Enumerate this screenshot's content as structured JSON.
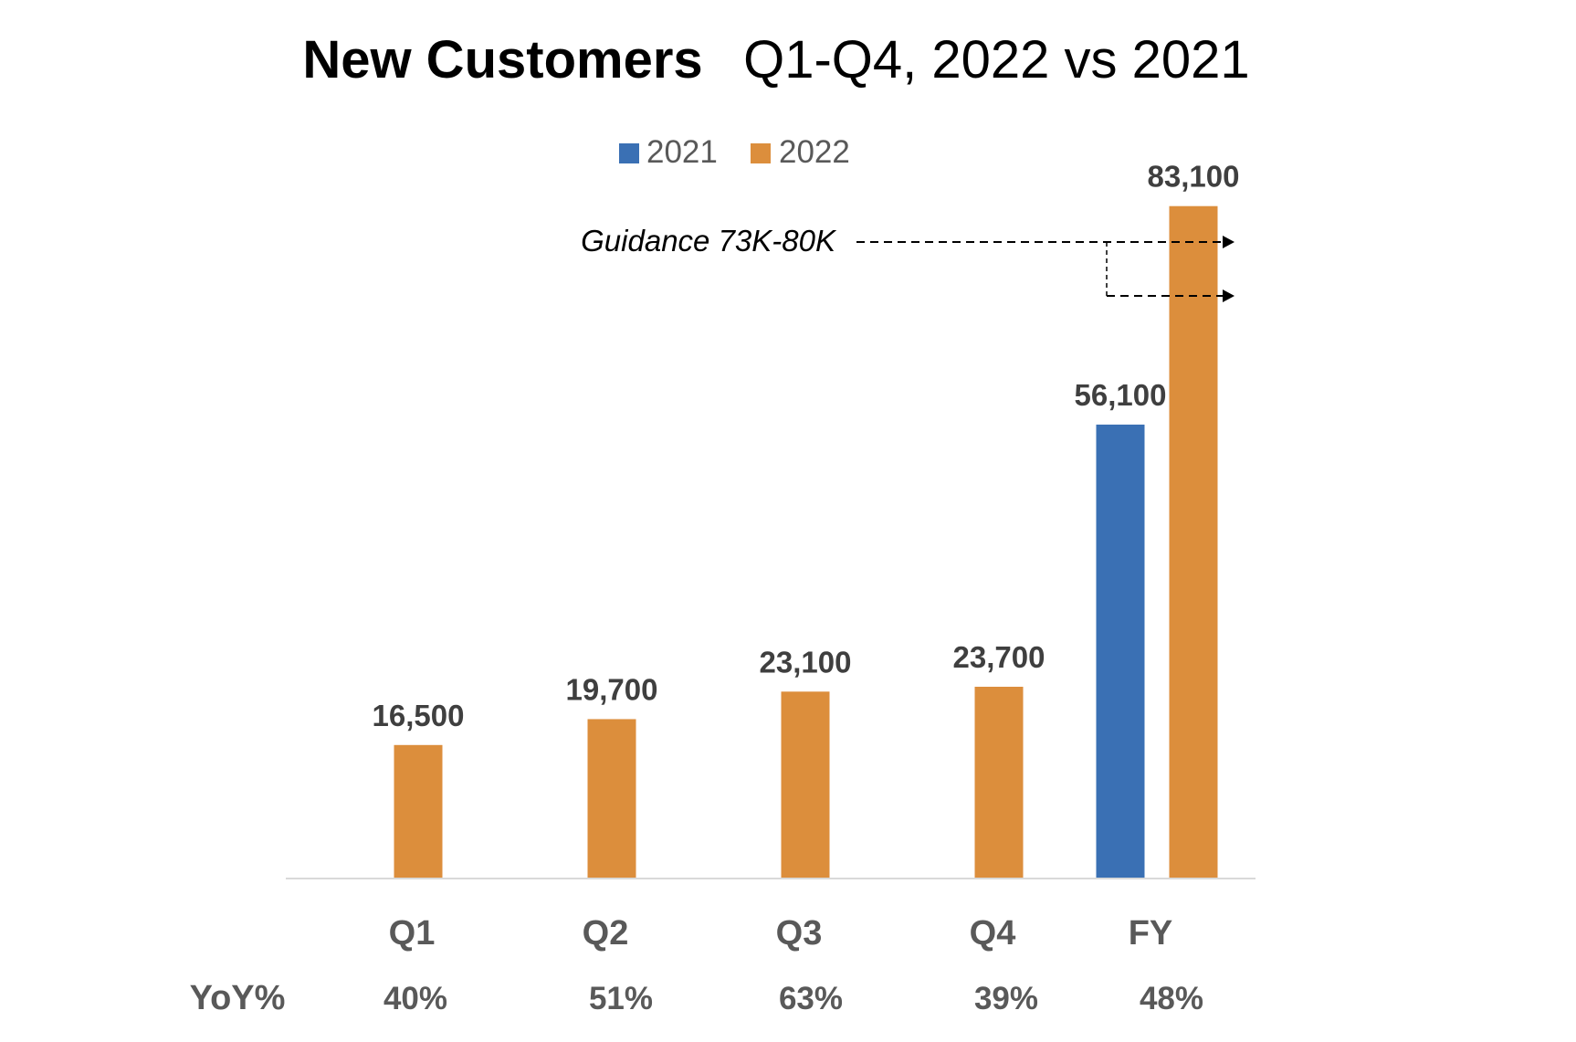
{
  "chart_data": {
    "type": "bar",
    "title": "New Customers",
    "subtitle": "Q1-Q4, 2022 vs 2021",
    "categories": [
      "Q1",
      "Q2",
      "Q3",
      "Q4",
      "FY"
    ],
    "series": [
      {
        "name": "2021",
        "color": "#3a70b4",
        "values": [
          null,
          null,
          null,
          null,
          56100
        ],
        "labels": [
          "",
          "",
          "",
          "",
          "56,100"
        ]
      },
      {
        "name": "2022",
        "color": "#dc8e3c",
        "values": [
          16500,
          19700,
          23100,
          23700,
          83100
        ],
        "labels": [
          "16,500",
          "19,700",
          "23,100",
          "23,700",
          "83,100"
        ]
      }
    ],
    "ylim": [
      0,
      86000
    ],
    "legend": "top-center",
    "grid": false,
    "row_label": "YoY%",
    "yoy": [
      "40%",
      "51%",
      "63%",
      "39%",
      "48%"
    ],
    "annotation": {
      "text": "Guidance 73K-80K",
      "low": 73000,
      "high": 80000
    }
  }
}
